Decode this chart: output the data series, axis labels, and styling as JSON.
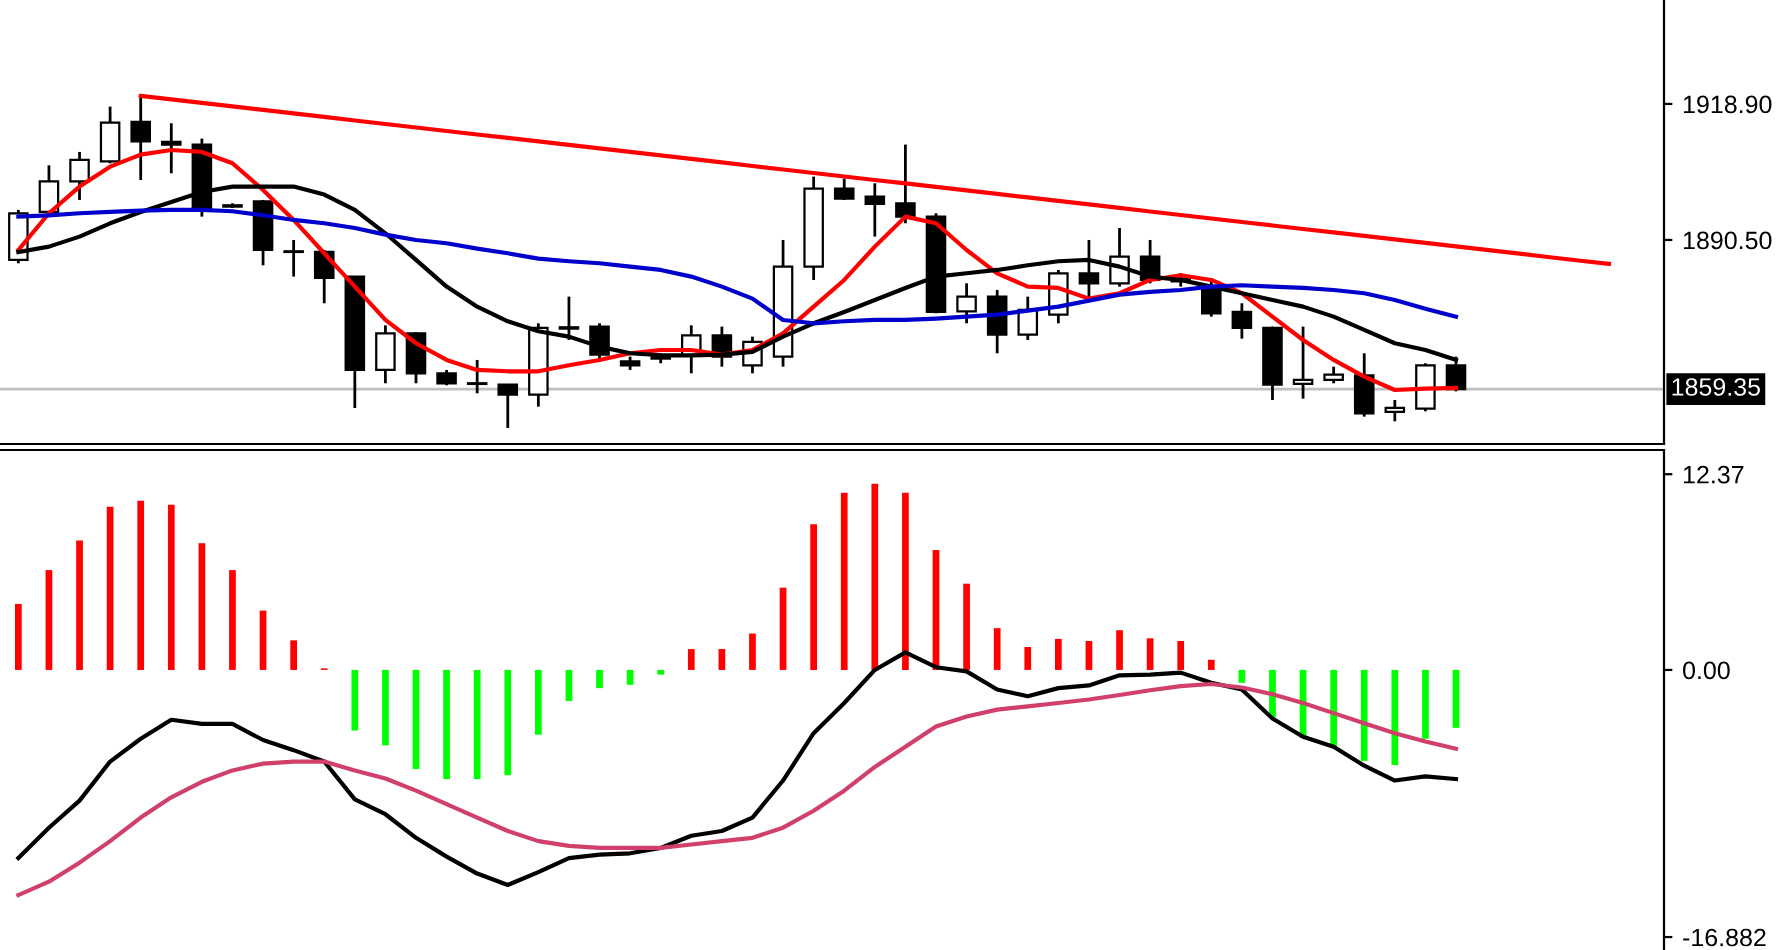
{
  "chart_data": [
    {
      "type": "candlestick",
      "categories": [
        null,
        null,
        null,
        null,
        null,
        null,
        null,
        null,
        null,
        null,
        null,
        null,
        null,
        null,
        null,
        null,
        null,
        null,
        null,
        null,
        null,
        null,
        null,
        null,
        null,
        null,
        null,
        null,
        null,
        null,
        null,
        null,
        null,
        null,
        null,
        null,
        null,
        null,
        null,
        null,
        null,
        null,
        null,
        null,
        null,
        null,
        null,
        null,
        null,
        null,
        null,
        null,
        null
      ],
      "ohlc": [
        [
          1886.33,
          1896.77,
          1885.63,
          1896.07
        ],
        [
          1896.35,
          1906.09,
          1895.37,
          1902.75
        ],
        [
          1902.75,
          1908.88,
          1898.85,
          1907.21
        ],
        [
          1906.93,
          1918.34,
          1906.51,
          1915.0
        ],
        [
          1915.14,
          1920.15,
          1903.03,
          1911.1
        ],
        [
          1910.96,
          1914.86,
          1904.42,
          1910.41
        ],
        [
          1910.41,
          1911.66,
          1895.37,
          1897.18
        ],
        [
          1897.74,
          1898.16,
          1897.18,
          1897.46
        ],
        [
          1898.58,
          1898.85,
          1885.21,
          1888.41
        ],
        [
          1888.13,
          1890.5,
          1882.85,
          1887.99
        ],
        [
          1887.99,
          1888.41,
          1877.28,
          1882.57
        ],
        [
          1882.85,
          1882.85,
          1855.42,
          1863.36
        ],
        [
          1863.36,
          1872.68,
          1860.58,
          1871.01
        ],
        [
          1871.01,
          1871.29,
          1860.58,
          1862.66
        ],
        [
          1862.66,
          1863.36,
          1860.16,
          1860.58
        ],
        [
          1860.58,
          1865.45,
          1858.49,
          1860.44
        ],
        [
          1860.3,
          1860.3,
          1851.25,
          1858.21
        ],
        [
          1858.21,
          1873.1,
          1855.7,
          1872.13
        ],
        [
          1871.99,
          1878.67,
          1869.62,
          1872.27
        ],
        [
          1872.41,
          1873.1,
          1865.45,
          1866.56
        ],
        [
          1865.17,
          1866.14,
          1863.36,
          1864.33
        ],
        [
          1865.73,
          1866.84,
          1864.75,
          1866.0
        ],
        [
          1866.42,
          1872.68,
          1862.66,
          1870.6
        ],
        [
          1870.6,
          1872.41,
          1864.05,
          1866.14
        ],
        [
          1864.33,
          1870.32,
          1862.66,
          1869.2
        ],
        [
          1866.14,
          1890.5,
          1864.05,
          1884.93
        ],
        [
          1884.93,
          1903.73,
          1882.15,
          1901.22
        ],
        [
          1901.22,
          1903.31,
          1898.85,
          1899.13
        ],
        [
          1899.55,
          1902.33,
          1891.2,
          1898.02
        ],
        [
          1898.16,
          1910.41,
          1893.98,
          1895.37
        ],
        [
          1895.37,
          1896.07,
          1875.19,
          1875.47
        ],
        [
          1875.61,
          1881.45,
          1873.1,
          1878.67
        ],
        [
          1878.67,
          1880.06,
          1866.84,
          1870.74
        ],
        [
          1870.74,
          1878.67,
          1869.62,
          1875.89
        ],
        [
          1874.91,
          1884.24,
          1873.1,
          1883.54
        ],
        [
          1883.54,
          1890.5,
          1877.97,
          1881.45
        ],
        [
          1881.45,
          1893.01,
          1880.76,
          1887.0
        ],
        [
          1887.0,
          1890.5,
          1881.45,
          1882.15
        ],
        [
          1882.43,
          1883.54,
          1880.76,
          1881.87
        ],
        [
          1880.76,
          1882.43,
          1874.49,
          1875.19
        ],
        [
          1875.47,
          1877.28,
          1869.9,
          1872.13
        ],
        [
          1872.13,
          1872.41,
          1857.09,
          1860.3
        ],
        [
          1860.44,
          1872.41,
          1857.37,
          1861.27
        ],
        [
          1861.27,
          1864.05,
          1860.58,
          1862.38
        ],
        [
          1862.24,
          1866.84,
          1853.61,
          1854.31
        ],
        [
          1854.59,
          1857.09,
          1852.64,
          1855.42
        ],
        [
          1855.28,
          1864.75,
          1854.73,
          1864.33
        ],
        [
          1864.33,
          1866.14,
          1858.9,
          1859.35
        ],
        null,
        null,
        null,
        null,
        null
      ],
      "series": [
        {
          "type": "line",
          "color": "#ff0000",
          "values": [
            1888.41,
            1896.07,
            1901.64,
            1905.81,
            1908.32,
            1909.29,
            1908.88,
            1906.51,
            1900.94,
            1894.68,
            1887.72,
            1880.76,
            1873.8,
            1868.93,
            1865.45,
            1863.36,
            1863.08,
            1863.08,
            1864.33,
            1865.45,
            1866.84,
            1867.53,
            1867.53,
            1866.56,
            1867.53,
            1871.01,
            1876.58,
            1882.15,
            1889.11,
            1895.37,
            1893.98,
            1888.41,
            1883.54,
            1880.76,
            1880.48,
            1878.25,
            1879.37,
            1882.15,
            1883.12,
            1882.15,
            1879.37,
            1874.49,
            1869.62,
            1865.45,
            1861.97,
            1859.18,
            1859.46,
            1859.6,
            null,
            null,
            null,
            null,
            null
          ]
        },
        {
          "type": "line",
          "color": "#000000",
          "values": [
            1887.99,
            1889.11,
            1891.2,
            1893.98,
            1896.35,
            1898.44,
            1900.52,
            1901.64,
            1901.64,
            1901.64,
            1899.97,
            1896.77,
            1891.89,
            1886.33,
            1880.76,
            1876.58,
            1873.52,
            1871.43,
            1870.32,
            1868.23,
            1866.84,
            1866.42,
            1866.42,
            1866.56,
            1867.12,
            1870.32,
            1873.1,
            1875.47,
            1877.97,
            1880.48,
            1882.85,
            1883.54,
            1884.24,
            1885.21,
            1886.05,
            1886.33,
            1884.93,
            1882.85,
            1882.15,
            1880.76,
            1879.37,
            1877.97,
            1876.58,
            1874.49,
            1871.71,
            1868.93,
            1867.53,
            1865.45,
            null,
            null,
            null,
            null,
            null
          ]
        },
        {
          "type": "line",
          "color": "#0000cc",
          "values": [
            1895.37,
            1895.65,
            1896.07,
            1896.35,
            1896.63,
            1896.77,
            1896.77,
            1896.49,
            1895.65,
            1894.68,
            1893.98,
            1893.01,
            1891.62,
            1890.5,
            1889.81,
            1888.69,
            1887.72,
            1886.6,
            1886.05,
            1885.63,
            1884.93,
            1884.24,
            1882.85,
            1880.76,
            1878.25,
            1873.8,
            1873.1,
            1873.52,
            1873.8,
            1873.8,
            1874.08,
            1874.49,
            1874.91,
            1875.75,
            1876.58,
            1877.83,
            1879.09,
            1879.65,
            1880.06,
            1880.76,
            1881.04,
            1880.76,
            1880.48,
            1880.06,
            1879.37,
            1877.97,
            1876.16,
            1874.49,
            null,
            null,
            null,
            null,
            null
          ]
        },
        {
          "type": "line",
          "color": "#ff0000",
          "values": [
            null,
            null,
            null,
            null,
            1920.57,
            1919.84,
            1919.11,
            1918.38,
            1917.65,
            1916.92,
            1916.19,
            1915.45,
            1914.72,
            1913.99,
            1913.26,
            1912.53,
            1911.8,
            1911.07,
            1910.34,
            1909.61,
            1908.88,
            1908.15,
            1907.42,
            1906.69,
            1905.95,
            1905.22,
            1904.49,
            1903.76,
            1903.03,
            1902.3,
            1901.57,
            1900.84,
            1900.11,
            1899.38,
            1898.65,
            1897.92,
            1897.19,
            1896.45,
            1895.72,
            1894.99,
            1894.26,
            1893.53,
            1892.8,
            1892.07,
            1891.34,
            1890.61,
            1889.88,
            1889.15,
            1888.42,
            1887.69,
            1886.95,
            1886.22,
            1885.49
          ]
        }
      ],
      "ylim": [
        1847.9,
        1940.6
      ],
      "yticks": [
        {
          "value": 1918.9,
          "label": "1918.90"
        },
        {
          "value": 1890.5,
          "label": "1890.50"
        }
      ],
      "ref_lines": [
        {
          "axis": "y",
          "value": 1859.35,
          "label": "1859.35",
          "color": "#c0c0c0"
        }
      ],
      "tick_labels": "y",
      "grid": false,
      "legend": false
    },
    {
      "type": "bar",
      "categories": [
        null,
        null,
        null,
        null,
        null,
        null,
        null,
        null,
        null,
        null,
        null,
        null,
        null,
        null,
        null,
        null,
        null,
        null,
        null,
        null,
        null,
        null,
        null,
        null,
        null,
        null,
        null,
        null,
        null,
        null,
        null,
        null,
        null,
        null,
        null,
        null,
        null,
        null,
        null,
        null,
        null,
        null,
        null,
        null,
        null,
        null,
        null,
        null,
        null,
        null,
        null,
        null,
        null
      ],
      "values": [
        4.17,
        6.31,
        8.18,
        10.31,
        10.69,
        10.44,
        8.01,
        6.31,
        3.75,
        1.87,
        0.1,
        -3.83,
        -4.77,
        -6.26,
        -6.9,
        -6.9,
        -6.65,
        -4.09,
        -1.96,
        -1.15,
        -0.94,
        -0.3,
        1.32,
        1.32,
        2.3,
        5.2,
        9.2,
        11.2,
        11.76,
        11.2,
        7.58,
        5.45,
        2.64,
        1.45,
        1.96,
        1.83,
        2.51,
        2.0,
        1.83,
        0.64,
        -0.81,
        -2.98,
        -4.3,
        -4.86,
        -5.75,
        -6.01,
        -4.35,
        -3.66,
        null,
        null,
        null,
        null,
        null
      ],
      "colors": [
        "#ff0000",
        "#ff0000",
        "#ff0000",
        "#ff0000",
        "#ff0000",
        "#ff0000",
        "#ff0000",
        "#ff0000",
        "#ff0000",
        "#ff0000",
        "#ff0000",
        "#00ff00",
        "#00ff00",
        "#00ff00",
        "#00ff00",
        "#00ff00",
        "#00ff00",
        "#00ff00",
        "#00ff00",
        "#00ff00",
        "#00ff00",
        "#00ff00",
        "#ff0000",
        "#ff0000",
        "#ff0000",
        "#ff0000",
        "#ff0000",
        "#ff0000",
        "#ff0000",
        "#ff0000",
        "#ff0000",
        "#ff0000",
        "#ff0000",
        "#ff0000",
        "#ff0000",
        "#ff0000",
        "#ff0000",
        "#ff0000",
        "#ff0000",
        "#ff0000",
        "#00ff00",
        "#00ff00",
        "#00ff00",
        "#00ff00",
        "#00ff00",
        "#00ff00",
        "#00ff00",
        "#00ff00",
        "#ff0000",
        "#ff0000",
        "#ff0000",
        "#ff0000",
        "#ff0000"
      ],
      "series": [
        {
          "type": "line",
          "color": "#000000",
          "values": [
            -11.89,
            -9.97,
            -8.26,
            -5.79,
            -4.35,
            -3.15,
            -3.41,
            -3.41,
            -4.43,
            -5.07,
            -5.79,
            -8.18,
            -9.12,
            -10.61,
            -11.8,
            -12.87,
            -13.59,
            -12.78,
            -11.89,
            -11.67,
            -11.59,
            -11.25,
            -10.48,
            -10.18,
            -9.33,
            -6.99,
            -4.0,
            -2.09,
            0.0,
            1.11,
            0.17,
            -0.09,
            -1.24,
            -1.66,
            -1.15,
            -0.98,
            -0.34,
            -0.3,
            -0.17,
            -0.81,
            -1.24,
            -3.07,
            -4.22,
            -4.86,
            -6.05,
            -6.99,
            -6.73,
            -6.9,
            null,
            null,
            null,
            null,
            null
          ]
        },
        {
          "type": "line",
          "color": "#d0406a",
          "values": [
            -14.23,
            -13.38,
            -12.18,
            -10.82,
            -9.33,
            -8.05,
            -7.07,
            -6.35,
            -5.92,
            -5.79,
            -5.79,
            -6.35,
            -6.86,
            -7.63,
            -8.48,
            -9.33,
            -10.18,
            -10.82,
            -11.12,
            -11.25,
            -11.25,
            -11.25,
            -11.03,
            -10.82,
            -10.61,
            -9.97,
            -8.9,
            -7.63,
            -6.13,
            -4.86,
            -3.58,
            -2.94,
            -2.51,
            -2.3,
            -2.09,
            -1.87,
            -1.58,
            -1.28,
            -1.02,
            -0.89,
            -1.11,
            -1.53,
            -2.09,
            -2.73,
            -3.37,
            -4.0,
            -4.52,
            -4.98,
            null,
            null,
            null,
            null,
            null
          ]
        }
      ],
      "ylim": [
        -17.7,
        13.9
      ],
      "yticks": [
        12.37,
        {
          "value": 0,
          "label": "0.00"
        },
        -16.882
      ],
      "tick_labels": "y",
      "grid": false,
      "legend": false
    }
  ]
}
